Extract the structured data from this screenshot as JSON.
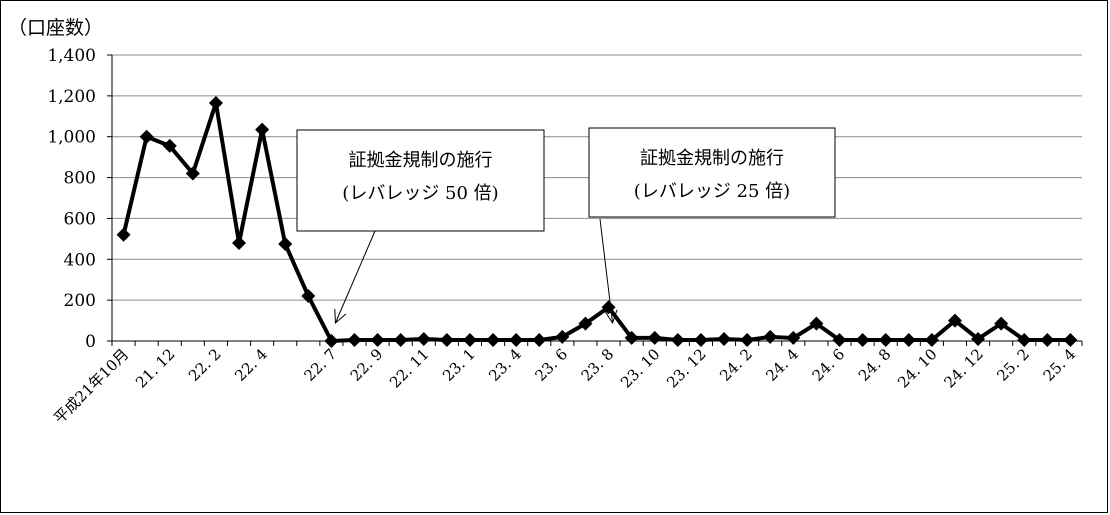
{
  "chart_data": {
    "type": "line",
    "title": "",
    "ylabel": "（口座数）",
    "xlabel": "",
    "ylim": [
      0,
      1400
    ],
    "yticks": [
      0,
      200,
      400,
      600,
      800,
      1000,
      1200,
      1400
    ],
    "ytick_labels": [
      "0",
      "200",
      "400",
      "600",
      "800",
      "1,000",
      "1,200",
      "1,400"
    ],
    "grid": true,
    "legend": "none",
    "line_color": "#000000",
    "x_labels_shown": [
      {
        "index": 0,
        "label": "平成21年10月"
      },
      {
        "index": 2,
        "label": "21. 12"
      },
      {
        "index": 4,
        "label": "22. 2"
      },
      {
        "index": 6,
        "label": "22. 4"
      },
      {
        "index": 9,
        "label": "22. 7"
      },
      {
        "index": 11,
        "label": "22. 9"
      },
      {
        "index": 13,
        "label": "22. 11"
      },
      {
        "index": 15,
        "label": "23. 1"
      },
      {
        "index": 17,
        "label": "23. 4"
      },
      {
        "index": 19,
        "label": "23. 6"
      },
      {
        "index": 21,
        "label": "23. 8"
      },
      {
        "index": 23,
        "label": "23. 10"
      },
      {
        "index": 25,
        "label": "23. 12"
      },
      {
        "index": 27,
        "label": "24. 2"
      },
      {
        "index": 29,
        "label": "24. 4"
      },
      {
        "index": 31,
        "label": "24. 6"
      },
      {
        "index": 33,
        "label": "24. 8"
      },
      {
        "index": 35,
        "label": "24. 10"
      },
      {
        "index": 37,
        "label": "24. 12"
      },
      {
        "index": 39,
        "label": "25. 2"
      },
      {
        "index": 41,
        "label": "25. 4"
      }
    ],
    "values": [
      520,
      1000,
      955,
      820,
      1165,
      480,
      1035,
      475,
      220,
      0,
      5,
      5,
      5,
      10,
      5,
      5,
      5,
      5,
      5,
      20,
      85,
      165,
      15,
      15,
      5,
      5,
      10,
      5,
      20,
      15,
      85,
      5,
      5,
      5,
      5,
      5,
      100,
      10,
      85,
      5,
      5,
      5
    ],
    "annotations": [
      {
        "lines": [
          "証拠金規制の施行",
          "(レバレッジ 50 倍)"
        ],
        "point_index": 9
      },
      {
        "lines": [
          "証拠金規制の施行",
          "(レバレッジ 25 倍)"
        ],
        "point_index": 21
      }
    ]
  }
}
